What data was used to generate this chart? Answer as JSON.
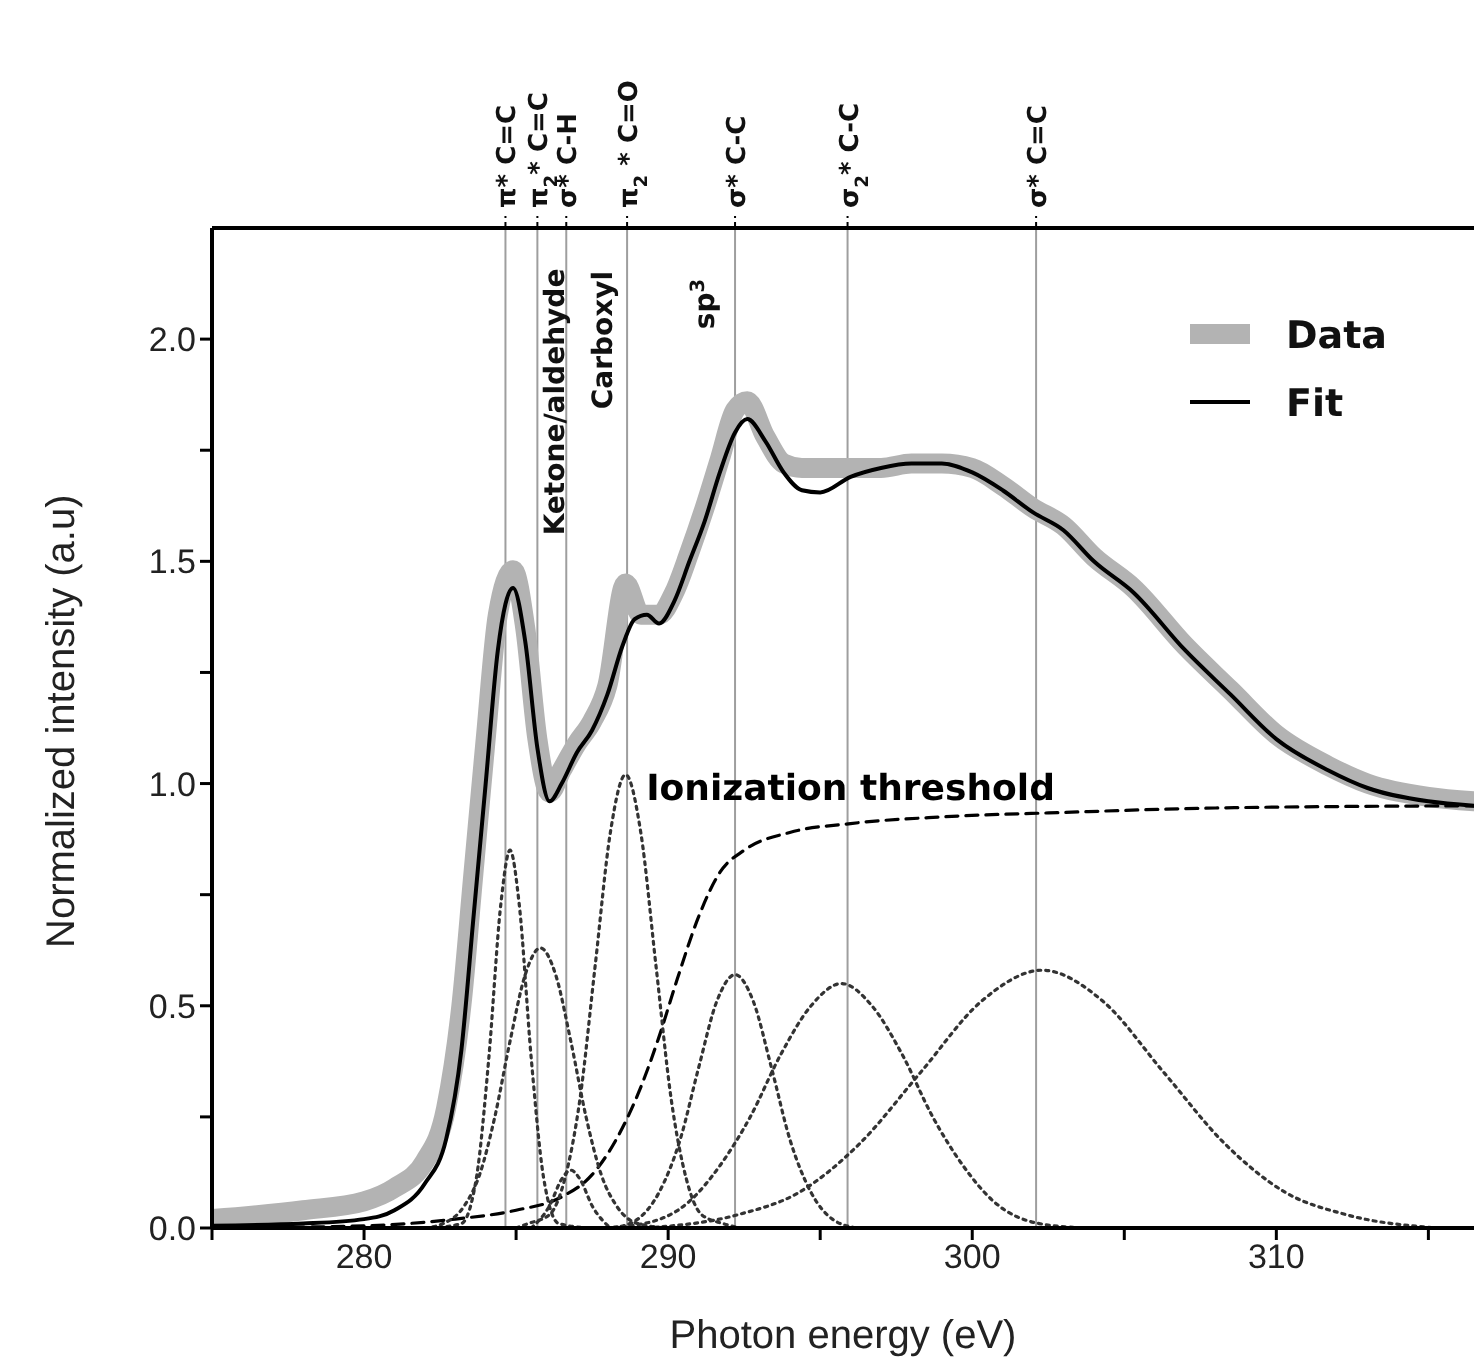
{
  "chart_data": {
    "type": "line",
    "xlabel": "Photon energy (eV)",
    "ylabel": "Normalized intensity (a.u)",
    "xlim": [
      275,
      316.5
    ],
    "ylim": [
      0,
      2.25
    ],
    "xticks": [
      {
        "value": 275,
        "label": null
      },
      280,
      {
        "value": 285,
        "label": null
      },
      290,
      {
        "value": 295,
        "label": null
      },
      300,
      {
        "value": 305,
        "label": null
      },
      310,
      {
        "value": 315,
        "label": null
      }
    ],
    "yticks": [
      {
        "value": 0,
        "label": "0.0"
      },
      {
        "value": 0.25,
        "label": null
      },
      {
        "value": 0.5,
        "label": "0.5"
      },
      {
        "value": 0.75,
        "label": null
      },
      {
        "value": 1,
        "label": "1.0"
      },
      {
        "value": 1.25,
        "label": null
      },
      {
        "value": 1.5,
        "label": "1.5"
      },
      {
        "value": 1.75,
        "label": null
      },
      {
        "value": 2,
        "label": "2.0"
      }
    ],
    "grid": false,
    "legend": "top right",
    "marker": "none",
    "series": [
      {
        "name": "Data",
        "color": "#b3b3b3",
        "line_style": "solid",
        "x": [
          275,
          278,
          280,
          281,
          282,
          282.7,
          283.2,
          283.6,
          284,
          284.4,
          284.9,
          285.3,
          285.7,
          286.1,
          286.5,
          287,
          287.5,
          288,
          288.6,
          289.1,
          289.7,
          290.2,
          290.7,
          291.2,
          291.7,
          292.2,
          292.6,
          293.2,
          293.8,
          294.4,
          295,
          296,
          297,
          298,
          299,
          300,
          301,
          302,
          303,
          304,
          305.3,
          307,
          308.5,
          310,
          311.7,
          313,
          315,
          316.5
        ],
        "values": [
          0.02,
          0.04,
          0.06,
          0.09,
          0.15,
          0.27,
          0.5,
          0.8,
          1.1,
          1.38,
          1.48,
          1.35,
          1.1,
          0.98,
          1.03,
          1.09,
          1.14,
          1.22,
          1.45,
          1.38,
          1.38,
          1.43,
          1.52,
          1.62,
          1.73,
          1.84,
          1.86,
          1.78,
          1.72,
          1.71,
          1.71,
          1.71,
          1.71,
          1.72,
          1.72,
          1.71,
          1.67,
          1.62,
          1.58,
          1.51,
          1.44,
          1.31,
          1.21,
          1.11,
          1.04,
          1.0,
          0.97,
          0.96
        ]
      },
      {
        "name": "Fit",
        "color": "#000000",
        "line_style": "solid",
        "x": [
          275,
          278,
          280,
          281,
          282,
          282.7,
          283.2,
          283.6,
          284,
          284.4,
          284.9,
          285.3,
          285.7,
          286.1,
          286.5,
          287,
          287.5,
          288,
          288.5,
          288.9,
          289.3,
          289.7,
          290.2,
          290.7,
          291.2,
          291.7,
          292.2,
          292.6,
          293.2,
          293.8,
          294.4,
          295,
          296,
          297,
          298,
          299,
          300,
          301,
          302,
          303,
          304,
          305.3,
          307,
          308.5,
          310,
          311.7,
          313,
          315,
          316.5
        ],
        "values": [
          0.005,
          0.01,
          0.02,
          0.04,
          0.1,
          0.2,
          0.4,
          0.7,
          1.0,
          1.3,
          1.44,
          1.32,
          1.08,
          0.96,
          1.0,
          1.07,
          1.12,
          1.2,
          1.31,
          1.37,
          1.38,
          1.36,
          1.41,
          1.5,
          1.59,
          1.7,
          1.79,
          1.82,
          1.77,
          1.7,
          1.66,
          1.655,
          1.69,
          1.71,
          1.72,
          1.72,
          1.7,
          1.66,
          1.61,
          1.57,
          1.5,
          1.43,
          1.3,
          1.2,
          1.1,
          1.03,
          0.99,
          0.96,
          0.95
        ]
      },
      {
        "name": "Ionization threshold",
        "color": "#000000",
        "line_style": "dashed",
        "x": [
          275,
          280,
          283,
          285,
          286.5,
          287.5,
          288.3,
          289,
          289.7,
          290.3,
          291,
          291.7,
          292.5,
          294,
          296,
          299,
          303,
          308,
          316.5
        ],
        "values": [
          0,
          0.005,
          0.02,
          0.04,
          0.07,
          0.12,
          0.2,
          0.3,
          0.43,
          0.56,
          0.7,
          0.8,
          0.85,
          0.89,
          0.91,
          0.925,
          0.935,
          0.945,
          0.95
        ]
      },
      {
        "color": "#333333",
        "line_style": "dotted",
        "x": [
          282.2,
          283.2,
          283.7,
          284.1,
          284.5,
          284.8,
          285.1,
          285.5,
          285.9,
          286.4,
          287.4
        ],
        "values": [
          0,
          0.01,
          0.115,
          0.38,
          0.73,
          0.85,
          0.73,
          0.38,
          0.115,
          0.01,
          0
        ]
      },
      {
        "color": "#333333",
        "line_style": "dotted",
        "x": [
          282,
          282.6,
          283.3,
          283.8,
          284.3,
          284.8,
          285.3,
          285.8,
          286.3,
          286.8,
          287.3,
          287.8,
          288.3,
          289,
          290
        ],
        "values": [
          0,
          0.01,
          0.05,
          0.12,
          0.25,
          0.42,
          0.57,
          0.63,
          0.57,
          0.42,
          0.25,
          0.12,
          0.05,
          0.01,
          0
        ]
      },
      {
        "color": "#333333",
        "line_style": "dotted",
        "x": [
          285.5,
          286.1,
          286.5,
          286.8,
          287.1,
          287.5,
          288.1
        ],
        "values": [
          0,
          0.05,
          0.11,
          0.13,
          0.11,
          0.05,
          0
        ]
      },
      {
        "color": "#333333",
        "line_style": "dotted",
        "x": [
          285,
          285.4,
          286.1,
          286.6,
          287.1,
          287.6,
          288.1,
          288.6,
          289.1,
          289.6,
          290.1,
          290.6,
          291.1,
          291.8,
          292.4
        ],
        "values": [
          0,
          0.01,
          0.03,
          0.11,
          0.29,
          0.59,
          0.89,
          1.02,
          0.89,
          0.59,
          0.29,
          0.11,
          0.03,
          0.01,
          0
        ]
      },
      {
        "color": "#333333",
        "line_style": "dotted",
        "x": [
          288.2,
          289,
          289.7,
          290.4,
          291,
          291.6,
          292.2,
          292.8,
          293.4,
          294,
          294.7,
          295.4,
          296.2
        ],
        "values": [
          0,
          0.02,
          0.08,
          0.2,
          0.36,
          0.51,
          0.57,
          0.51,
          0.36,
          0.2,
          0.08,
          0.02,
          0
        ]
      },
      {
        "color": "#333333",
        "line_style": "dotted",
        "x": [
          287.7,
          289.2,
          290.7,
          291.7,
          292.7,
          293.7,
          294.7,
          295.7,
          296.7,
          297.7,
          298.7,
          299.7,
          300.7,
          302.2,
          303.7
        ],
        "values": [
          0,
          0.01,
          0.06,
          0.14,
          0.25,
          0.39,
          0.5,
          0.55,
          0.5,
          0.39,
          0.25,
          0.14,
          0.06,
          0.01,
          0
        ]
      },
      {
        "color": "#333333",
        "line_style": "dotted",
        "x": [
          289.3,
          292.3,
          294.3,
          296.3,
          298.3,
          300.3,
          302.3,
          304.3,
          306.3,
          308.3,
          310.3,
          312.3,
          315.3
        ],
        "values": [
          0,
          0.03,
          0.08,
          0.19,
          0.35,
          0.51,
          0.58,
          0.51,
          0.35,
          0.19,
          0.08,
          0.03,
          0
        ]
      }
    ],
    "ref_lines": [
      {
        "axis": "x",
        "value": 284.65,
        "label": "π* C=C",
        "color": "#9e9e9e"
      },
      {
        "axis": "x",
        "value": 285.7,
        "label": "π$_{2}$* C=C",
        "color": "#9e9e9e"
      },
      {
        "axis": "x",
        "value": 286.65,
        "label": "σ* C-H",
        "color": "#9e9e9e"
      },
      {
        "axis": "x",
        "value": 288.65,
        "label": "π$_{2}$ * C=O",
        "color": "#9e9e9e"
      },
      {
        "axis": "x",
        "value": 292.2,
        "label": "σ* C-C",
        "color": "#9e9e9e"
      },
      {
        "axis": "x",
        "value": 295.9,
        "label": "σ$_{2}$* C-C",
        "color": "#9e9e9e"
      },
      {
        "axis": "x",
        "value": 302.1,
        "label": "σ* C=C",
        "color": "#9e9e9e"
      }
    ],
    "annotations": [
      "Ketone/aldehyde",
      "Carboxyl",
      "sp$^{3}$"
    ]
  }
}
